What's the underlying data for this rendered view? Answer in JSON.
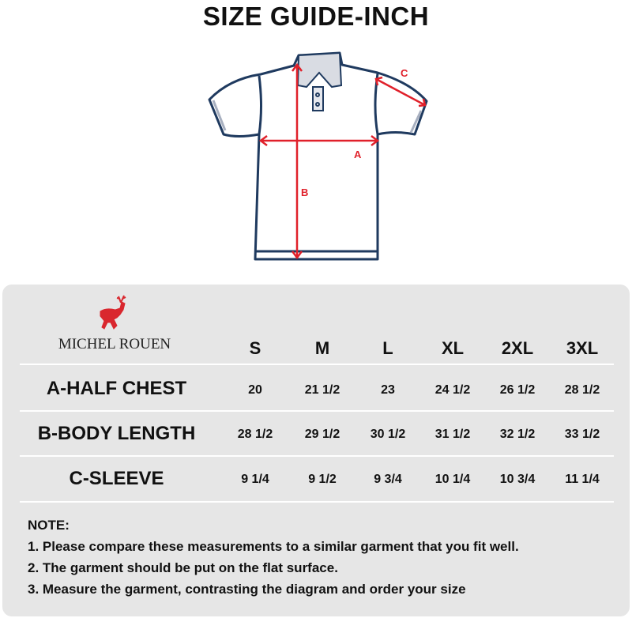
{
  "title": "SIZE GUIDE-INCH",
  "diagram": {
    "labels": {
      "a": "A",
      "b": "B",
      "c": "C"
    },
    "outline_color": "#1f3a5f",
    "arrow_color": "#e0202a"
  },
  "brand": {
    "name": "MICHEL ROUEN",
    "logo": "red-deer-logo",
    "logo_color": "#d9272e"
  },
  "table": {
    "sizes": [
      "S",
      "M",
      "L",
      "XL",
      "2XL",
      "3XL"
    ],
    "rows": [
      {
        "label": "A-HALF CHEST",
        "values": [
          "20",
          "21 1/2",
          "23",
          "24 1/2",
          "26 1/2",
          "28 1/2"
        ]
      },
      {
        "label": "B-BODY LENGTH",
        "values": [
          "28 1/2",
          "29 1/2",
          "30 1/2",
          "31 1/2",
          "32 1/2",
          "33 1/2"
        ]
      },
      {
        "label": "C-SLEEVE",
        "values": [
          "9 1/4",
          "9 1/2",
          "9 3/4",
          "10 1/4",
          "10 3/4",
          "11 1/4"
        ]
      }
    ]
  },
  "notes": {
    "heading": "NOTE:",
    "items": [
      "1. Please compare these measurements to a similar garment that you fit well.",
      "2. The garment should be put on the flat surface.",
      "3. Measure the garment, contrasting the diagram and order your size"
    ]
  }
}
